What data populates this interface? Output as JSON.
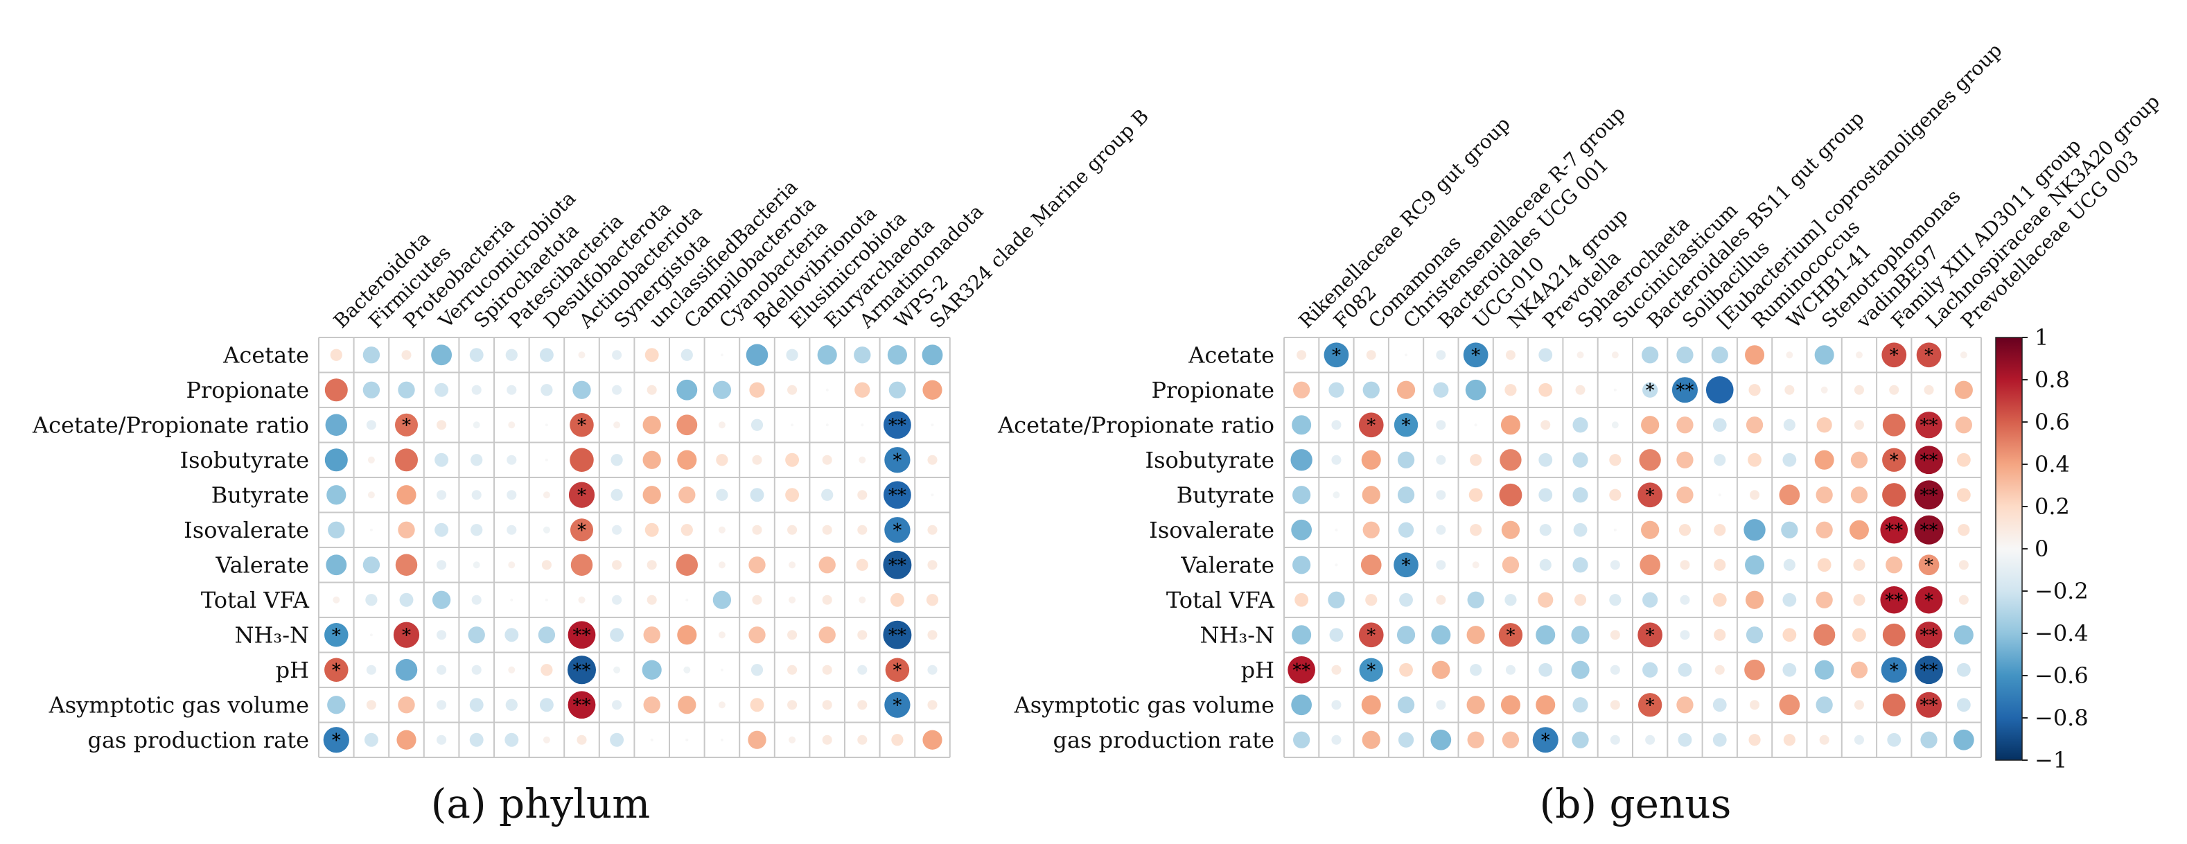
{
  "chart_data": [
    {
      "type": "heatmap",
      "subtype": "correlation-circle-matrix",
      "caption": "(a)  phylum",
      "columns": [
        "Bacteroidota",
        "Firmicutes",
        "Proteobacteria",
        "Verrucomicrobiota",
        "Spirochaetota",
        "Patescibacteria",
        "Desulfobacterota",
        "Actinobacteriota",
        "Synergistota",
        "unclassifiedBacteria",
        "Campilobacterota",
        "Cyanobacteria",
        "Bdellovibrionota",
        "Elusimicrobiota",
        "Euryarchaeota",
        "Armatimonadota",
        "WPS-2",
        "SAR324 clade Marine group B"
      ],
      "rows": [
        "Acetate",
        "Propionate",
        "Acetate/Propionate ratio",
        "Isobutyrate",
        "Butyrate",
        "Isovalerate",
        "Valerate",
        "Total VFA",
        "NH₃-N",
        "pH",
        "Asymptotic gas volume",
        "gas production rate"
      ],
      "values": [
        [
          0.15,
          -0.3,
          0.1,
          -0.45,
          -0.2,
          -0.15,
          -0.2,
          0.05,
          -0.1,
          0.2,
          -0.15,
          0.0,
          -0.5,
          -0.15,
          -0.4,
          -0.3,
          -0.4,
          -0.45
        ],
        [
          0.55,
          -0.3,
          -0.3,
          -0.2,
          -0.1,
          -0.1,
          -0.15,
          -0.35,
          -0.1,
          0.1,
          -0.45,
          -0.35,
          0.25,
          0.1,
          0.0,
          0.25,
          -0.3,
          0.4
        ],
        [
          -0.5,
          -0.1,
          0.55,
          0.1,
          -0.05,
          0.05,
          0.0,
          0.6,
          0.05,
          0.35,
          0.45,
          0.05,
          -0.15,
          0.0,
          0.0,
          0.0,
          -0.8,
          0.0
        ],
        [
          -0.55,
          0.05,
          0.55,
          -0.2,
          -0.15,
          -0.1,
          0.0,
          0.6,
          -0.15,
          0.35,
          0.4,
          0.15,
          0.1,
          0.2,
          0.1,
          0.05,
          -0.7,
          0.1
        ],
        [
          -0.4,
          0.05,
          0.4,
          -0.1,
          -0.1,
          -0.1,
          0.05,
          0.7,
          -0.15,
          0.35,
          0.3,
          -0.15,
          -0.2,
          0.2,
          -0.15,
          0.1,
          -0.8,
          0.0
        ],
        [
          -0.3,
          0.0,
          0.3,
          -0.2,
          -0.15,
          -0.1,
          -0.05,
          0.55,
          -0.1,
          0.2,
          0.15,
          0.05,
          0.1,
          0.1,
          0.1,
          0.1,
          -0.7,
          0.1
        ],
        [
          -0.45,
          -0.3,
          0.5,
          -0.1,
          -0.05,
          0.05,
          0.1,
          0.5,
          0.1,
          0.1,
          0.5,
          0.05,
          0.3,
          0.05,
          0.3,
          0.15,
          -0.85,
          0.1
        ],
        [
          0.05,
          -0.15,
          -0.2,
          -0.35,
          -0.1,
          0.0,
          0.0,
          0.05,
          -0.1,
          0.1,
          0.0,
          -0.35,
          0.1,
          0.05,
          0.1,
          0.05,
          0.2,
          0.15
        ],
        [
          -0.6,
          0.0,
          0.7,
          -0.1,
          -0.3,
          -0.2,
          -0.3,
          0.8,
          -0.2,
          0.3,
          0.4,
          0.05,
          0.3,
          0.1,
          0.3,
          0.1,
          -0.85,
          0.1
        ],
        [
          0.6,
          -0.1,
          -0.5,
          -0.1,
          -0.1,
          0.05,
          0.15,
          -0.85,
          -0.05,
          -0.4,
          -0.05,
          0.0,
          -0.15,
          0.1,
          0.1,
          -0.1,
          0.6,
          -0.1
        ],
        [
          -0.35,
          0.1,
          0.3,
          -0.1,
          -0.2,
          -0.15,
          -0.2,
          0.8,
          -0.1,
          0.3,
          0.35,
          0.05,
          0.2,
          0.1,
          0.1,
          0.1,
          -0.7,
          0.1
        ],
        [
          -0.7,
          -0.2,
          0.4,
          -0.1,
          -0.2,
          -0.2,
          0.05,
          0.1,
          -0.2,
          0.0,
          0.0,
          0.0,
          0.35,
          0.05,
          0.1,
          0.1,
          0.15,
          0.4
        ]
      ],
      "significance": [
        [
          "",
          "",
          "",
          "",
          "",
          "",
          "",
          "",
          "",
          "",
          "",
          "",
          "",
          "",
          "",
          "",
          "",
          ""
        ],
        [
          "",
          "",
          "",
          "",
          "",
          "",
          "",
          "",
          "",
          "",
          "",
          "",
          "",
          "",
          "",
          "",
          "",
          ""
        ],
        [
          "",
          "",
          "*",
          "",
          "",
          "",
          "",
          "*",
          "",
          "",
          "",
          "",
          "",
          "",
          "",
          "",
          "**",
          ""
        ],
        [
          "",
          "",
          "",
          "",
          "",
          "",
          "",
          "",
          "",
          "",
          "",
          "",
          "",
          "",
          "",
          "",
          "*",
          ""
        ],
        [
          "",
          "",
          "",
          "",
          "",
          "",
          "",
          "*",
          "",
          "",
          "",
          "",
          "",
          "",
          "",
          "",
          "**",
          ""
        ],
        [
          "",
          "",
          "",
          "",
          "",
          "",
          "",
          "*",
          "",
          "",
          "",
          "",
          "",
          "",
          "",
          "",
          "*",
          ""
        ],
        [
          "",
          "",
          "",
          "",
          "",
          "",
          "",
          "",
          "",
          "",
          "",
          "",
          "",
          "",
          "",
          "",
          "**",
          ""
        ],
        [
          "",
          "",
          "",
          "",
          "",
          "",
          "",
          "",
          "",
          "",
          "",
          "",
          "",
          "",
          "",
          "",
          "",
          ""
        ],
        [
          "*",
          "",
          "*",
          "",
          "",
          "",
          "",
          "**",
          "",
          "",
          "",
          "",
          "",
          "",
          "",
          "",
          "**",
          ""
        ],
        [
          "*",
          "",
          "",
          "",
          "",
          "",
          "",
          "**",
          "",
          "",
          "",
          "",
          "",
          "",
          "",
          "",
          "*",
          ""
        ],
        [
          "",
          "",
          "",
          "",
          "",
          "",
          "",
          "**",
          "",
          "",
          "",
          "",
          "",
          "",
          "",
          "",
          "*",
          ""
        ],
        [
          "*",
          "",
          "",
          "",
          "",
          "",
          "",
          "",
          "",
          "",
          "",
          "",
          "",
          "",
          "",
          "",
          "",
          ""
        ]
      ]
    },
    {
      "type": "heatmap",
      "subtype": "correlation-circle-matrix",
      "caption": "(b) genus",
      "columns": [
        "Rikenellaceae RC9 gut group",
        "F082",
        "Comamonas",
        "Christensenellaceae R-7 group",
        "Bacteroidales UCG 001",
        "UCG-010",
        "NK4A214 group",
        "Prevotella",
        "Sphaerochaeta",
        "Succiniclasticum",
        "Bacteroidales BS11 gut group",
        "Solibacillus",
        "[Eubacterium] coprostanoligenes group",
        "Ruminococcus",
        "WCHB1-41",
        "Stenotrophomonas",
        "vadinBE97",
        "Family XIII AD3011 group",
        "Lachnospiraceae NK3A20 group",
        "Prevotellaceae UCG 003"
      ],
      "rows": [
        "Acetate",
        "Propionate",
        "Acetate/Propionate ratio",
        "Isobutyrate",
        "Butyrate",
        "Isovalerate",
        "Valerate",
        "Total VFA",
        "NH₃-N",
        "pH",
        "Asymptotic gas volume",
        "gas production rate"
      ],
      "values": [
        [
          0.1,
          -0.65,
          0.1,
          0.0,
          -0.1,
          -0.65,
          0.1,
          -0.2,
          0.05,
          0.05,
          -0.3,
          -0.3,
          -0.3,
          0.4,
          0.05,
          -0.4,
          0.05,
          0.65,
          0.65,
          0.05
        ],
        [
          0.3,
          -0.25,
          -0.3,
          0.35,
          -0.25,
          -0.45,
          0.15,
          0.2,
          0.1,
          0.0,
          -0.25,
          -0.7,
          -0.8,
          0.15,
          0.1,
          0.05,
          0.1,
          0.1,
          0.1,
          0.35
        ],
        [
          -0.4,
          -0.1,
          0.65,
          -0.6,
          -0.1,
          0.0,
          0.4,
          0.1,
          -0.25,
          -0.05,
          0.35,
          0.3,
          -0.2,
          0.3,
          -0.15,
          0.25,
          0.1,
          0.55,
          0.75,
          0.3
        ],
        [
          -0.5,
          -0.1,
          0.4,
          -0.3,
          -0.1,
          0.15,
          0.5,
          -0.2,
          -0.25,
          0.15,
          0.5,
          0.3,
          -0.15,
          0.2,
          -0.2,
          0.4,
          0.3,
          0.6,
          0.85,
          0.2
        ],
        [
          -0.35,
          -0.05,
          0.35,
          -0.3,
          -0.1,
          0.2,
          0.55,
          -0.2,
          -0.25,
          0.15,
          0.65,
          0.3,
          0.0,
          0.1,
          0.45,
          0.3,
          0.3,
          0.6,
          0.9,
          0.2
        ],
        [
          -0.45,
          0.0,
          0.3,
          -0.25,
          -0.1,
          0.15,
          0.35,
          -0.15,
          -0.2,
          0.0,
          0.35,
          0.15,
          0.15,
          -0.5,
          -0.3,
          0.3,
          0.4,
          0.8,
          0.9,
          0.15
        ],
        [
          -0.35,
          0.0,
          0.45,
          -0.65,
          -0.1,
          0.05,
          0.3,
          -0.15,
          -0.25,
          -0.1,
          0.45,
          0.1,
          0.15,
          -0.4,
          -0.15,
          0.2,
          0.15,
          0.3,
          0.45,
          0.1
        ],
        [
          0.2,
          -0.3,
          0.15,
          -0.2,
          0.1,
          -0.3,
          -0.15,
          0.25,
          0.15,
          -0.15,
          -0.25,
          -0.1,
          0.2,
          0.35,
          -0.2,
          0.3,
          0.15,
          0.8,
          0.8,
          0.1
        ],
        [
          -0.4,
          -0.2,
          0.65,
          -0.35,
          -0.4,
          0.35,
          0.6,
          -0.4,
          -0.35,
          0.1,
          0.65,
          -0.1,
          0.15,
          -0.3,
          0.2,
          0.5,
          0.2,
          0.55,
          0.75,
          -0.4
        ],
        [
          0.8,
          0.1,
          -0.6,
          0.2,
          0.35,
          -0.15,
          -0.1,
          -0.2,
          -0.35,
          -0.1,
          -0.25,
          -0.2,
          0.1,
          0.45,
          -0.2,
          -0.4,
          0.3,
          -0.7,
          -0.85,
          -0.2
        ],
        [
          -0.45,
          -0.1,
          0.4,
          -0.3,
          -0.1,
          0.35,
          0.4,
          0.4,
          -0.25,
          0.1,
          0.6,
          0.3,
          -0.2,
          0.1,
          0.45,
          -0.3,
          0.1,
          0.55,
          0.7,
          -0.2
        ],
        [
          -0.3,
          -0.1,
          0.35,
          -0.25,
          -0.45,
          0.3,
          0.3,
          -0.7,
          -0.3,
          -0.1,
          -0.1,
          -0.2,
          -0.2,
          0.15,
          0.15,
          0.1,
          -0.1,
          -0.2,
          -0.3,
          -0.45
        ]
      ],
      "significance": [
        [
          "",
          "*",
          "",
          "",
          "",
          "*",
          "",
          "",
          "",
          "",
          "",
          "",
          "",
          "",
          "",
          "",
          "",
          "*",
          "*",
          ""
        ],
        [
          "",
          "",
          "",
          "",
          "",
          "",
          "",
          "",
          "",
          "",
          "*",
          "**",
          "",
          "",
          "",
          "",
          "",
          "",
          "",
          ""
        ],
        [
          "",
          "",
          "*",
          "*",
          "",
          "",
          "",
          "",
          "",
          "",
          "",
          "",
          "",
          "",
          "",
          "",
          "",
          "",
          "**",
          ""
        ],
        [
          "",
          "",
          "",
          "",
          "",
          "",
          "",
          "",
          "",
          "",
          "",
          "",
          "",
          "",
          "",
          "",
          "",
          "*",
          "**",
          ""
        ],
        [
          "",
          "",
          "",
          "",
          "",
          "",
          "",
          "",
          "",
          "",
          "*",
          "",
          "",
          "",
          "",
          "",
          "",
          "",
          "**",
          ""
        ],
        [
          "",
          "",
          "",
          "",
          "",
          "",
          "",
          "",
          "",
          "",
          "",
          "",
          "",
          "",
          "",
          "",
          "",
          "**",
          "**",
          ""
        ],
        [
          "",
          "",
          "",
          "*",
          "",
          "",
          "",
          "",
          "",
          "",
          "",
          "",
          "",
          "",
          "",
          "",
          "",
          "",
          "*",
          ""
        ],
        [
          "",
          "",
          "",
          "",
          "",
          "",
          "",
          "",
          "",
          "",
          "",
          "",
          "",
          "",
          "",
          "",
          "",
          "**",
          "*",
          ""
        ],
        [
          "",
          "",
          "*",
          "",
          "",
          "",
          "*",
          "",
          "",
          "",
          "*",
          "",
          "",
          "",
          "",
          "",
          "",
          "",
          "**",
          ""
        ],
        [
          "**",
          "",
          "*",
          "",
          "",
          "",
          "",
          "",
          "",
          "",
          "",
          "",
          "",
          "",
          "",
          "",
          "",
          "*",
          "**",
          ""
        ],
        [
          "",
          "",
          "",
          "",
          "",
          "",
          "",
          "",
          "",
          "",
          "*",
          "",
          "",
          "",
          "",
          "",
          "",
          "",
          "**",
          ""
        ],
        [
          "",
          "",
          "",
          "",
          "",
          "",
          "",
          "*",
          "",
          "",
          "",
          "",
          "",
          "",
          "",
          "",
          "",
          "",
          "",
          ""
        ]
      ]
    }
  ],
  "colorbar": {
    "ticks": [
      "1",
      "0.8",
      "0.6",
      "0.4",
      "0.2",
      "0",
      "−0.2",
      "−0.4",
      "−0.6",
      "−0.8",
      "−1"
    ],
    "colors": [
      "#67001f",
      "#b2182b",
      "#d6604d",
      "#f4a582",
      "#fddbc7",
      "#f7f7f7",
      "#d1e5f0",
      "#92c5de",
      "#4393c3",
      "#2166ac",
      "#053061"
    ]
  },
  "style": {
    "grid_color": "#c8c8c8",
    "star_color": "#000000"
  }
}
